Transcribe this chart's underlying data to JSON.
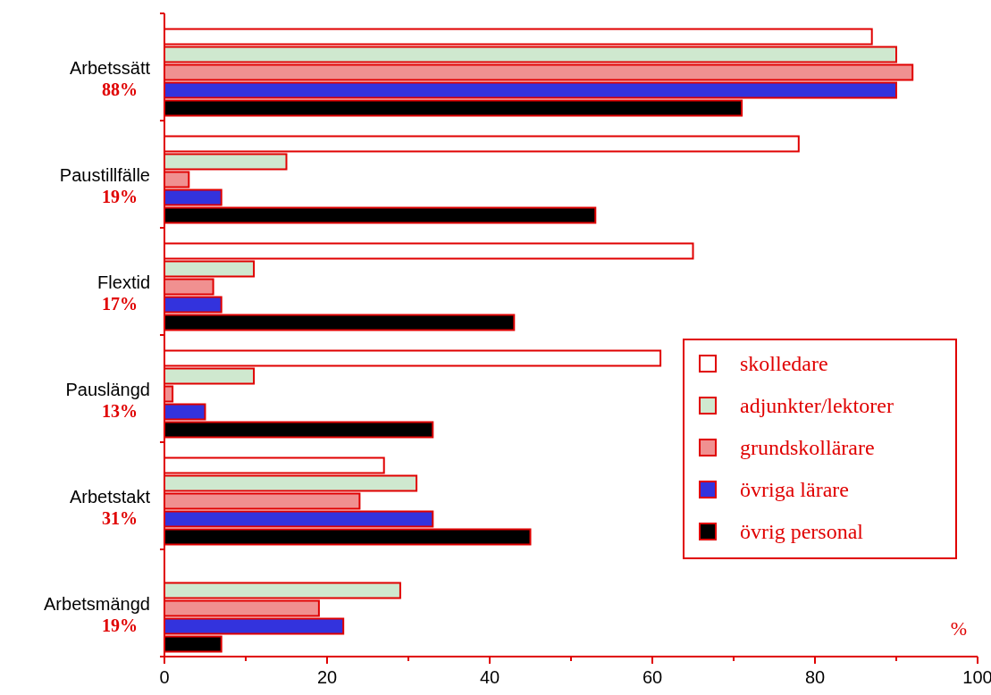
{
  "chart_data": {
    "type": "bar",
    "orientation": "horizontal",
    "categories": [
      "Arbetssätt",
      "Paustillfälle",
      "Flextid",
      "Pauslängd",
      "Arbetstakt",
      "Arbetsmängd"
    ],
    "series": [
      {
        "name": "skolledare",
        "color": "#ffffff",
        "values": [
          87,
          78,
          65,
          61,
          27,
          null
        ]
      },
      {
        "name": "adjunkter/lektorer",
        "color": "#cfe8cf",
        "values": [
          90,
          15,
          11,
          11,
          31,
          29
        ]
      },
      {
        "name": "grundskollärare",
        "color": "#f09090",
        "values": [
          92,
          3,
          6,
          1,
          24,
          19
        ]
      },
      {
        "name": "övriga lärare",
        "color": "#3333dd",
        "values": [
          90,
          7,
          7,
          5,
          33,
          22
        ]
      },
      {
        "name": "övrig personal",
        "color": "#000000",
        "values": [
          71,
          53,
          43,
          33,
          45,
          7
        ]
      }
    ],
    "xlim": [
      0,
      100
    ],
    "xticks": [
      0,
      {
        "value": 10,
        "label": null
      },
      20,
      {
        "value": 30,
        "label": null
      },
      40,
      {
        "value": 50,
        "label": null
      },
      60,
      {
        "value": 70,
        "label": null
      },
      80,
      {
        "value": 90,
        "label": null
      },
      100
    ],
    "xlabel": "%",
    "legend": "right",
    "grid": false,
    "annotations": [
      "88%",
      "19%",
      "17%",
      "13%",
      "31%",
      "19%"
    ]
  }
}
